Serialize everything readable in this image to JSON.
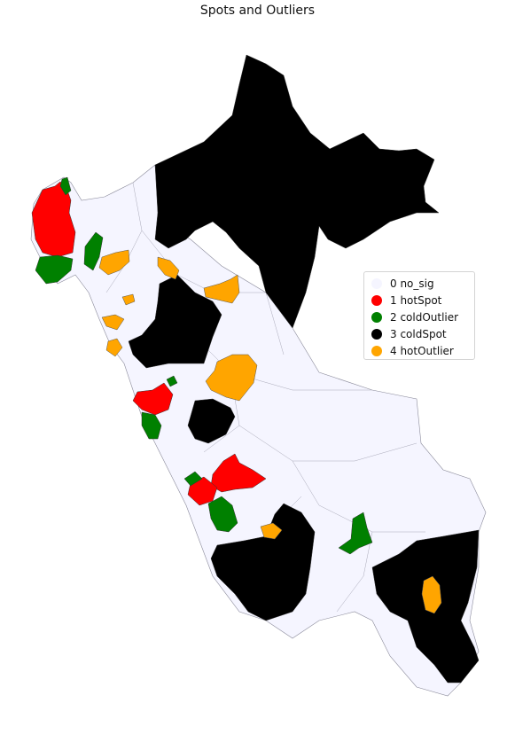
{
  "title": "Spots and Outliers",
  "legend": {
    "entries": [
      {
        "label": "0 no_sig",
        "color": "#f5f5ff"
      },
      {
        "label": "1 hotSpot",
        "color": "#ff0000"
      },
      {
        "label": "2 coldOutlier",
        "color": "#008000"
      },
      {
        "label": "3 coldSpot",
        "color": "#000000"
      },
      {
        "label": "4 hotOutlier",
        "color": "#ffa500"
      }
    ]
  },
  "colors": {
    "no_sig": "#f5f5ff",
    "hotSpot": "#ff0000",
    "coldOutlier": "#008000",
    "coldSpot": "#000000",
    "hotOutlier": "#ffa500",
    "border": "#8a8a9a"
  }
}
